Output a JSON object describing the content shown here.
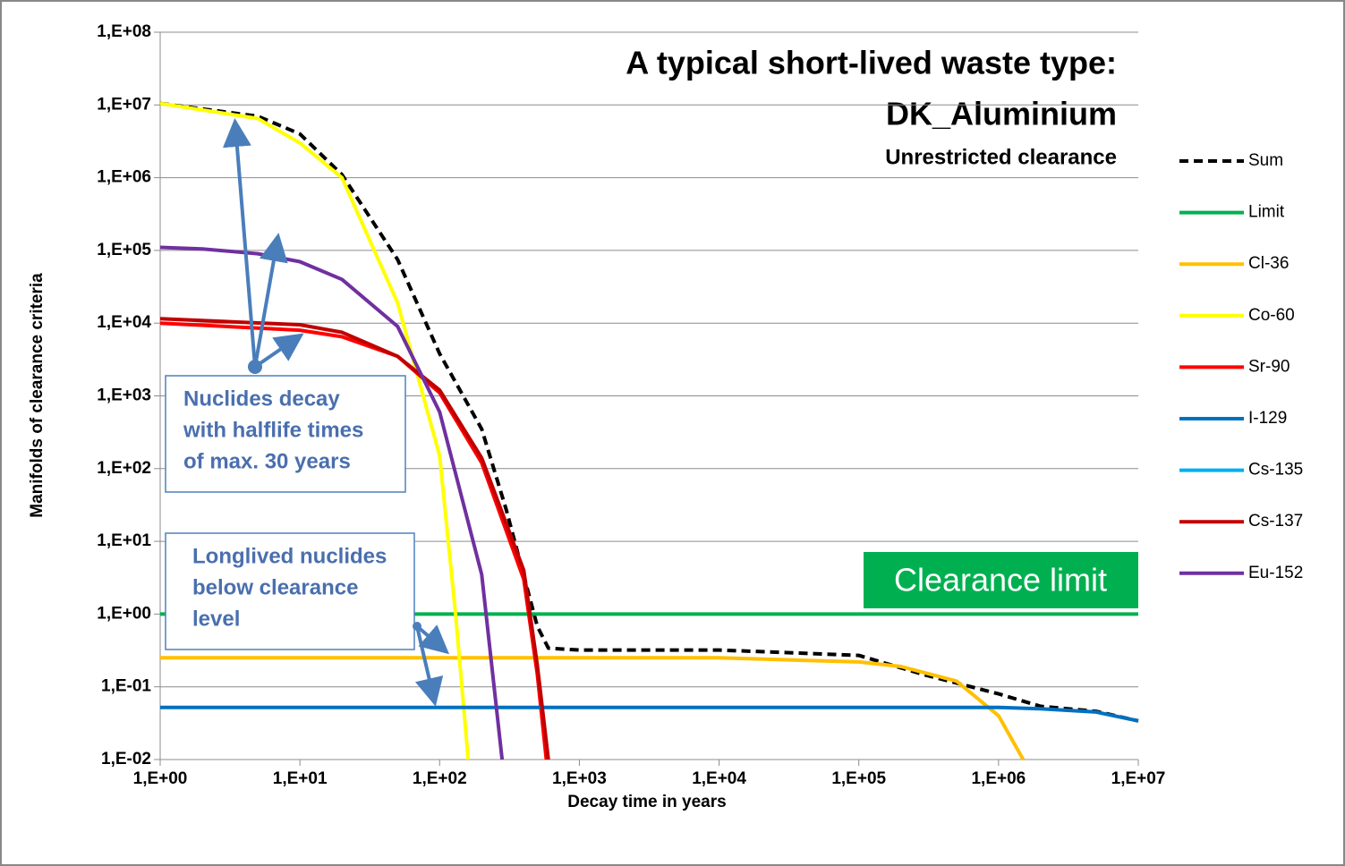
{
  "chart_data": {
    "type": "line",
    "title": "A typical short-lived waste type:",
    "subtitle": "DK_Aluminium",
    "note": "Unrestricted clearance",
    "x_label": "Decay time in years",
    "y_label": "Manifolds of clearance criteria",
    "xscale": "log",
    "yscale": "log",
    "grid": true,
    "legend": "right",
    "xlim": [
      1,
      10000000
    ],
    "ylim": [
      0.01,
      100000000
    ],
    "xticks": [
      {
        "value": 1,
        "label": "1,E+00"
      },
      {
        "value": 10,
        "label": "1,E+01"
      },
      {
        "value": 100,
        "label": "1,E+02"
      },
      {
        "value": 1000,
        "label": "1,E+03"
      },
      {
        "value": 10000,
        "label": "1,E+04"
      },
      {
        "value": 100000,
        "label": "1,E+05"
      },
      {
        "value": 1000000,
        "label": "1,E+06"
      },
      {
        "value": 10000000,
        "label": "1,E+07"
      }
    ],
    "yticks": [
      {
        "value": 0.01,
        "label": "1,E-02"
      },
      {
        "value": 0.1,
        "label": "1,E-01"
      },
      {
        "value": 1,
        "label": "1,E+00"
      },
      {
        "value": 10,
        "label": "1,E+01"
      },
      {
        "value": 100,
        "label": "1,E+02"
      },
      {
        "value": 1000,
        "label": "1,E+03"
      },
      {
        "value": 10000,
        "label": "1,E+04"
      },
      {
        "value": 100000,
        "label": "1,E+05"
      },
      {
        "value": 1000000,
        "label": "1,E+06"
      },
      {
        "value": 10000000,
        "label": "1,E+07"
      },
      {
        "value": 100000000,
        "label": "1,E+08"
      }
    ],
    "series": [
      {
        "name": "Sum",
        "color": "#000000",
        "dash": true,
        "x": [
          1,
          5,
          10,
          20,
          50,
          100,
          200,
          300,
          500,
          600,
          1000,
          10000,
          100000,
          300000,
          1000000,
          2000000,
          5000000,
          10000000
        ],
        "values": [
          10500000,
          7000000,
          4000000,
          1100000,
          75000,
          3800,
          350,
          27,
          0.68,
          0.34,
          0.32,
          0.32,
          0.27,
          0.145,
          0.08,
          0.054,
          0.046,
          0.034
        ]
      },
      {
        "name": "Limit",
        "color": "#00b050",
        "x": [
          1,
          10000000
        ],
        "values": [
          1,
          1
        ]
      },
      {
        "name": "Cl-36",
        "color": "#ffc000",
        "x": [
          1,
          10000,
          100000,
          200000,
          500000,
          1000000,
          1500000
        ],
        "values": [
          0.25,
          0.25,
          0.22,
          0.19,
          0.12,
          0.04,
          0.01
        ]
      },
      {
        "name": "Co-60",
        "color": "#ffff00",
        "x": [
          1,
          5,
          10,
          20,
          50,
          100,
          130,
          160
        ],
        "values": [
          10500000,
          6500000,
          3000000,
          1000000,
          19000,
          150,
          1,
          0.01
        ]
      },
      {
        "name": "Sr-90",
        "color": "#ff0000",
        "x": [
          1,
          10,
          20,
          50,
          100,
          200,
          400,
          500,
          580
        ],
        "values": [
          10000,
          8000,
          6500,
          3500,
          1100,
          120,
          3,
          0.15,
          0.01
        ]
      },
      {
        "name": "I-129",
        "color": "#0070c0",
        "x": [
          1,
          1000000,
          2000000,
          5000000,
          10000000
        ],
        "values": [
          0.052,
          0.052,
          0.05,
          0.045,
          0.034
        ]
      },
      {
        "name": "Cs-135",
        "color": "#00b0f0",
        "x": [],
        "values": []
      },
      {
        "name": "Cs-137",
        "color": "#c00000",
        "x": [
          1,
          10,
          20,
          50,
          100,
          200,
          400,
          500,
          600
        ],
        "values": [
          11500,
          9500,
          7500,
          3500,
          1200,
          140,
          4,
          0.2,
          0.01
        ]
      },
      {
        "name": "Eu-152",
        "color": "#7030a0",
        "x": [
          1,
          2,
          5,
          10,
          20,
          50,
          100,
          200,
          280
        ],
        "values": [
          110000,
          105000,
          90000,
          70000,
          40000,
          9000,
          600,
          3.5,
          0.01
        ]
      }
    ],
    "annotations": [
      {
        "lines": [
          "Nuclides decay",
          "with halflife times",
          "of max. 30 years"
        ]
      },
      {
        "lines": [
          "Longlived nuclides",
          "below clearance",
          "level"
        ]
      },
      {
        "text": "Clearance limit"
      }
    ]
  }
}
